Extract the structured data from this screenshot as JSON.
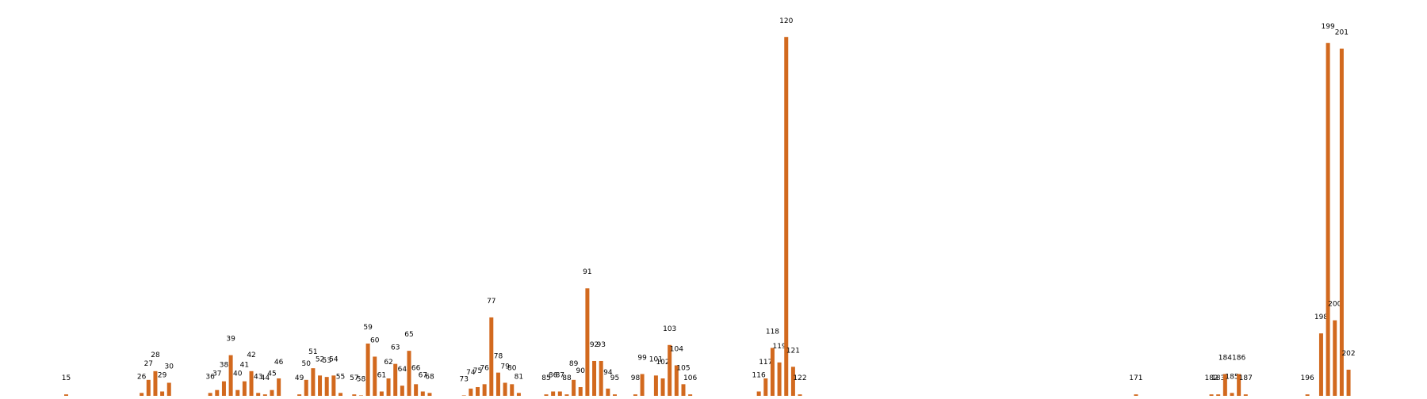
{
  "chart_data": {
    "type": "bar",
    "categories": [
      "15",
      "26",
      "27",
      "28",
      "29",
      "30",
      "36",
      "37",
      "38",
      "39",
      "40",
      "41",
      "42",
      "43",
      "44",
      "45",
      "46",
      "49",
      "50",
      "51",
      "52",
      "53",
      "54",
      "55",
      "57",
      "58",
      "59",
      "60",
      "61",
      "62",
      "63",
      "64",
      "65",
      "66",
      "67",
      "68",
      "73",
      "74",
      "75",
      "76",
      "77",
      "78",
      "79",
      "80",
      "81",
      "85",
      "86",
      "87",
      "88",
      "89",
      "90",
      "91",
      "92",
      "93",
      "94",
      "95",
      "98",
      "99",
      "101",
      "102",
      "103",
      "104",
      "105",
      "106",
      "116",
      "117",
      "118",
      "119",
      "120",
      "121",
      "122",
      "171",
      "182",
      "183",
      "184",
      "185",
      "186",
      "187",
      "196",
      "198",
      "199",
      "200",
      "201",
      "202"
    ],
    "values": [
      1,
      2,
      11,
      17,
      3,
      9,
      2,
      4,
      10,
      28,
      4,
      10,
      17,
      2,
      1,
      4,
      12,
      1,
      11,
      19,
      14,
      13,
      14,
      2,
      1,
      0.3,
      36,
      27,
      3,
      12,
      22,
      7,
      31,
      8,
      3,
      2,
      0.3,
      5,
      6,
      8,
      54,
      16,
      9,
      8,
      2,
      1,
      3,
      3,
      1,
      11,
      6,
      74,
      24,
      24,
      5,
      1,
      1,
      15,
      14,
      12,
      35,
      21,
      8,
      1,
      3,
      12,
      33,
      23,
      247,
      20,
      1,
      1,
      1,
      1,
      15,
      2,
      15,
      1,
      1,
      43,
      243,
      52,
      239,
      18
    ],
    "bar_color": "#d2691e",
    "title": "",
    "xlabel": "",
    "ylabel": "",
    "ylim": [
      0,
      260
    ],
    "axes_visible": false,
    "grid": false,
    "legend": false
  }
}
